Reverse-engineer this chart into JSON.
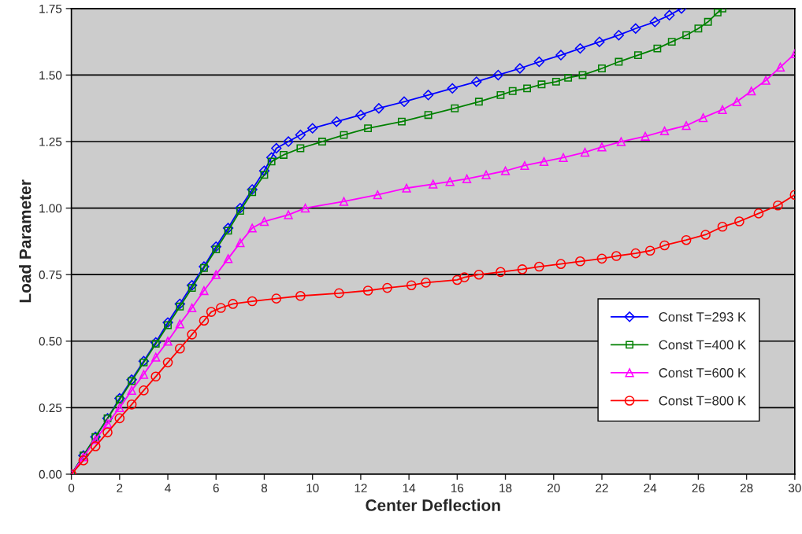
{
  "chart_data": {
    "type": "line",
    "xlabel": "Center Deflection",
    "ylabel": "Load Parameter",
    "xlim": [
      0,
      30
    ],
    "xticks": [
      0,
      2,
      4,
      6,
      8,
      10,
      12,
      14,
      16,
      18,
      20,
      22,
      24,
      26,
      28,
      30
    ],
    "ylim": [
      0,
      1.75
    ],
    "yticks": [
      {
        "value": 0,
        "label": "0.00"
      },
      {
        "value": 0.25,
        "label": "0.25"
      },
      {
        "value": 0.5,
        "label": "0.50"
      },
      {
        "value": 0.75,
        "label": "0.75"
      },
      {
        "value": 1,
        "label": "1.00"
      },
      {
        "value": 1.25,
        "label": "1.25"
      },
      {
        "value": 1.5,
        "label": "1.50"
      },
      {
        "value": 1.75,
        "label": "1.75"
      }
    ],
    "grid": "y",
    "legend": "right",
    "line_style": "solid",
    "series": [
      {
        "name": "Const T=293 K",
        "color": "#0000ff",
        "marker": "diamond",
        "x": [
          0,
          0.5,
          1,
          1.5,
          2,
          2.5,
          3,
          3.5,
          4,
          4.5,
          5,
          5.5,
          6,
          6.5,
          7,
          7.5,
          8,
          8.3,
          8.5,
          9,
          9.5,
          10,
          11,
          12,
          12.75,
          13.8,
          14.8,
          15.8,
          16.8,
          17.7,
          18.6,
          19.4,
          20.3,
          21.1,
          21.9,
          22.7,
          23.4,
          24.2,
          24.8,
          25.3
        ],
        "values": [
          0,
          0.07,
          0.14,
          0.21,
          0.285,
          0.355,
          0.425,
          0.495,
          0.57,
          0.64,
          0.71,
          0.78,
          0.855,
          0.925,
          1.0,
          1.07,
          1.14,
          1.19,
          1.225,
          1.25,
          1.275,
          1.3,
          1.325,
          1.35,
          1.375,
          1.4,
          1.425,
          1.45,
          1.475,
          1.5,
          1.525,
          1.55,
          1.575,
          1.6,
          1.625,
          1.65,
          1.675,
          1.7,
          1.725,
          1.75
        ]
      },
      {
        "name": "Const T=400 K",
        "color": "#008000",
        "marker": "square",
        "x": [
          0,
          0.5,
          1,
          1.5,
          2,
          2.5,
          3,
          3.5,
          4,
          4.5,
          5,
          5.5,
          6,
          6.5,
          7,
          7.5,
          8,
          8.3,
          8.8,
          9.5,
          10.4,
          11.3,
          12.3,
          13.7,
          14.8,
          15.9,
          16.9,
          17.8,
          18.3,
          18.9,
          19.5,
          20.1,
          20.6,
          21.2,
          22,
          22.7,
          23.5,
          24.3,
          24.9,
          25.5,
          26,
          26.4,
          26.8,
          27
        ],
        "values": [
          0,
          0.07,
          0.14,
          0.21,
          0.28,
          0.35,
          0.42,
          0.49,
          0.56,
          0.63,
          0.7,
          0.775,
          0.845,
          0.915,
          0.99,
          1.06,
          1.125,
          1.175,
          1.2,
          1.225,
          1.25,
          1.275,
          1.3,
          1.325,
          1.35,
          1.375,
          1.4,
          1.425,
          1.44,
          1.45,
          1.465,
          1.475,
          1.49,
          1.5,
          1.525,
          1.55,
          1.575,
          1.6,
          1.625,
          1.65,
          1.675,
          1.7,
          1.735,
          1.75
        ]
      },
      {
        "name": "Const T=600 K",
        "color": "#ff00ff",
        "marker": "triangle",
        "x": [
          0,
          0.5,
          1,
          1.5,
          2,
          2.5,
          3,
          3.5,
          4,
          4.5,
          5,
          5.5,
          6,
          6.5,
          7,
          7.5,
          8,
          9,
          9.7,
          11.3,
          12.7,
          13.9,
          15,
          15.7,
          16.4,
          17.2,
          18,
          18.8,
          19.6,
          20.4,
          21.3,
          22,
          22.8,
          23.8,
          24.6,
          25.5,
          26.2,
          27,
          27.6,
          28.2,
          28.8,
          29.4,
          30
        ],
        "values": [
          0,
          0.065,
          0.13,
          0.19,
          0.25,
          0.315,
          0.375,
          0.44,
          0.5,
          0.565,
          0.625,
          0.69,
          0.75,
          0.81,
          0.87,
          0.925,
          0.95,
          0.975,
          1.0,
          1.025,
          1.05,
          1.075,
          1.09,
          1.1,
          1.11,
          1.125,
          1.14,
          1.16,
          1.175,
          1.19,
          1.21,
          1.23,
          1.25,
          1.27,
          1.29,
          1.31,
          1.34,
          1.37,
          1.4,
          1.44,
          1.48,
          1.53,
          1.58
        ]
      },
      {
        "name": "Const T=800 K",
        "color": "#ff0000",
        "marker": "circle",
        "x": [
          0,
          0.5,
          1,
          1.5,
          2,
          2.5,
          3,
          3.5,
          4,
          4.5,
          5,
          5.5,
          5.8,
          6.2,
          6.7,
          7.5,
          8.5,
          9.5,
          11.1,
          12.3,
          13.1,
          14.1,
          14.7,
          16,
          16.3,
          16.9,
          17.8,
          18.7,
          19.4,
          20.3,
          21.1,
          22,
          22.6,
          23.4,
          24,
          24.6,
          25.5,
          26.3,
          27,
          27.7,
          28.5,
          29.3,
          30
        ],
        "values": [
          0,
          0.052,
          0.105,
          0.157,
          0.21,
          0.262,
          0.315,
          0.367,
          0.42,
          0.472,
          0.525,
          0.577,
          0.61,
          0.625,
          0.64,
          0.65,
          0.66,
          0.67,
          0.68,
          0.69,
          0.7,
          0.71,
          0.72,
          0.73,
          0.74,
          0.75,
          0.76,
          0.77,
          0.78,
          0.79,
          0.8,
          0.81,
          0.82,
          0.83,
          0.84,
          0.86,
          0.88,
          0.9,
          0.93,
          0.95,
          0.98,
          1.01,
          1.05
        ]
      }
    ]
  }
}
